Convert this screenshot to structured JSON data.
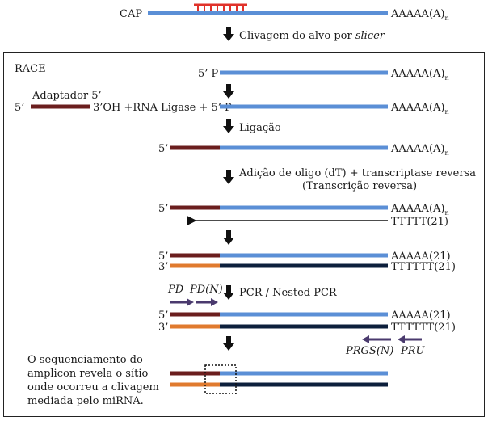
{
  "colors": {
    "mrna": "#5b8fd6",
    "adapter": "#6b1e1e",
    "cdna": "#0d1f3c",
    "adapter_complement": "#e07a2e",
    "mirna": "#e0322a",
    "primer": "#4a3a6e",
    "arrow": "#111111"
  },
  "top": {
    "cap": "CAP",
    "polya": "AAAAA(A)",
    "polya_sub": "n",
    "step_cleavage": "Clivagem do alvo por ",
    "step_cleavage_italic": "slicer"
  },
  "race": {
    "box_title": "RACE",
    "five_p": "5’ P",
    "polya": "AAAAA(A)",
    "polya_sub": "n",
    "adapter_title": "Adaptador 5’",
    "adapter_5": "5’",
    "adapter_3oh": "3’OH +RNA Ligase + 5’ P",
    "step_ligation": "Ligação",
    "label_5": "5’",
    "label_3": "3’",
    "step_rt_1": "Adição de oligo (dT) + transcriptase reversa",
    "step_rt_2": "(Transcrição reversa)",
    "tttt21": "TTTTT(21)",
    "aaaaa21": "AAAAA(21)",
    "ttttt21": "TTTTTT(21)",
    "primer_pd": "PD",
    "primer_pdn": "PD(N)",
    "step_pcr": "PCR / Nested PCR",
    "primer_prgsn": "PRGS(N)",
    "primer_pru": "PRU",
    "seq_text": [
      "O sequenciamento do",
      "amplicon revela o sítio",
      "onde ocorreu a clivagem",
      "mediada pelo miRNA."
    ]
  }
}
